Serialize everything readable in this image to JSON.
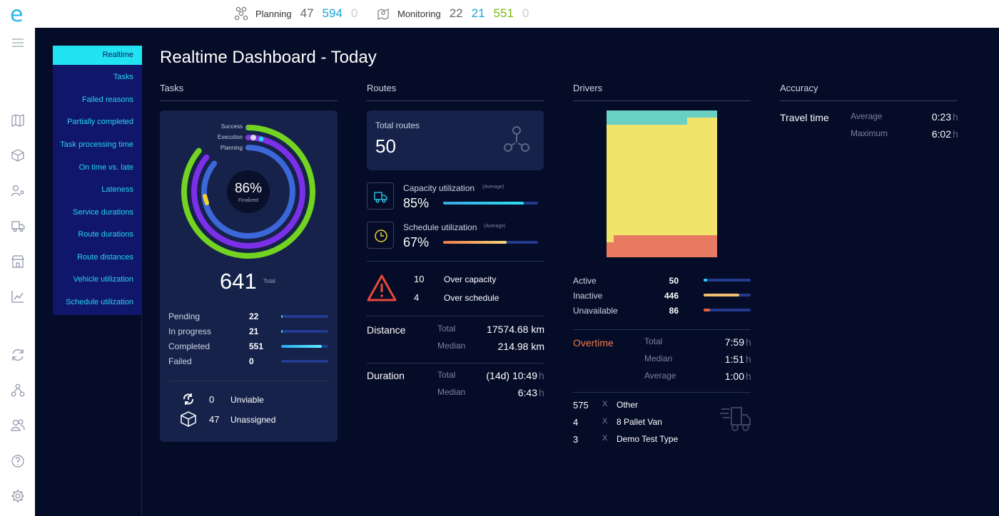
{
  "topbar": {
    "planning": {
      "label": "Planning",
      "n1": "47",
      "n2": "594",
      "n3": "0"
    },
    "monitoring": {
      "label": "Monitoring",
      "n1": "22",
      "n2": "21",
      "n3": "551",
      "n4": "0"
    }
  },
  "subnav": {
    "active": "Realtime",
    "items": [
      "Tasks",
      "Failed reasons",
      "Partially completed",
      "Task processing time",
      "On time vs. late",
      "Lateness",
      "Service durations",
      "Route durations",
      "Route distances",
      "Vehicle utilization",
      "Schedule utilization"
    ]
  },
  "page_title": "Realtime Dashboard - Today",
  "tasks": {
    "title": "Tasks",
    "ring_labels": {
      "success": "Success",
      "execution": "Execution",
      "planning": "Planning"
    },
    "ring_levels": {
      "success": 0.86,
      "execution": 0.86,
      "planning": 0.86
    },
    "percent": "86%",
    "percent_label": "Finalized",
    "total": "641",
    "total_label": "Total",
    "rows": [
      {
        "label": "Pending",
        "value": "22",
        "fill": 0.03,
        "color": "#29d4f0"
      },
      {
        "label": "In progress",
        "value": "21",
        "fill": 0.03,
        "color": "#29d4f0"
      },
      {
        "label": "Completed",
        "value": "551",
        "fill": 0.86,
        "color": "#29d4f0"
      },
      {
        "label": "Failed",
        "value": "0",
        "fill": 0,
        "color": "#29d4f0"
      }
    ],
    "unviable": {
      "value": "0",
      "label": "Unviable"
    },
    "unassigned": {
      "value": "47",
      "label": "Unassigned"
    }
  },
  "routes": {
    "title": "Routes",
    "total_label": "Total routes",
    "total": "50",
    "capacity": {
      "label": "Capacity utilization",
      "tag": "(Average)",
      "value": "85%",
      "fill": 0.85
    },
    "schedule": {
      "label": "Schedule utilization",
      "tag": "(Average)",
      "value": "67%",
      "fill": 0.67
    },
    "over_capacity": {
      "value": "10",
      "label": "Over capacity"
    },
    "over_schedule": {
      "value": "4",
      "label": "Over schedule"
    },
    "distance": {
      "label": "Distance",
      "total_label": "Total",
      "total": "17574.68 km",
      "median_label": "Median",
      "median": "214.98 km"
    },
    "duration": {
      "label": "Duration",
      "total_label": "Total",
      "total": "(14d) 10:49",
      "total_unit": "h",
      "median_label": "Median",
      "median": "6:43",
      "median_unit": "h"
    }
  },
  "drivers": {
    "title": "Drivers",
    "stats": [
      {
        "label": "Active",
        "value": "50",
        "fill": 0.08,
        "color": "#29d4f0"
      },
      {
        "label": "Inactive",
        "value": "446",
        "fill": 0.76,
        "color": "#f0c070"
      },
      {
        "label": "Unavailable",
        "value": "86",
        "fill": 0.14,
        "color": "#e8603a"
      }
    ],
    "overtime": {
      "label": "Overtime",
      "total_label": "Total",
      "total": "7:59",
      "median_label": "Median",
      "median": "1:51",
      "average_label": "Average",
      "average": "1:00",
      "unit": "h"
    },
    "types": [
      {
        "count": "575",
        "x": "X",
        "name": "Other"
      },
      {
        "count": "4",
        "x": "X",
        "name": "8 Pallet Van"
      },
      {
        "count": "3",
        "x": "X",
        "name": "Demo Test Type"
      }
    ],
    "colors": {
      "active": "#6ad0c4",
      "inactive": "#f0e46a",
      "unavailable": "#e87a62"
    }
  },
  "accuracy": {
    "title": "Accuracy",
    "label": "Travel time",
    "average_label": "Average",
    "average": "0:23",
    "maximum_label": "Maximum",
    "maximum": "6:02",
    "unit": "h"
  },
  "colors": {
    "accent": "#22e3f1",
    "background": "#050c27",
    "card": "#16224a",
    "nav": "#10176a"
  }
}
